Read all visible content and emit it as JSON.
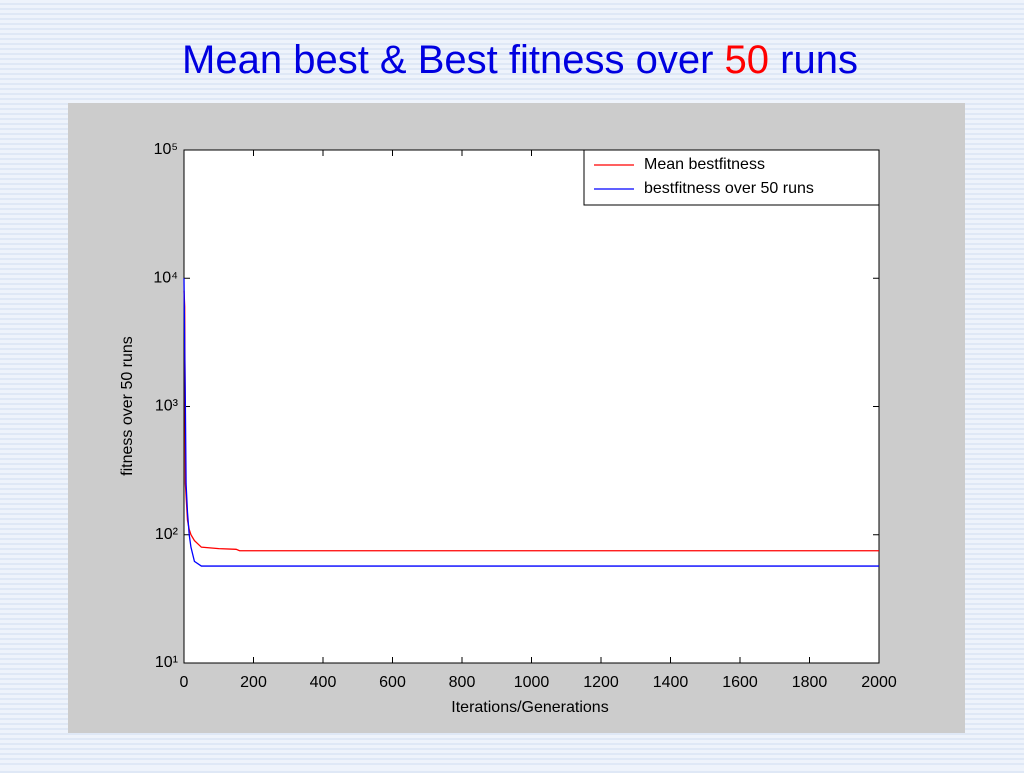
{
  "slide_title": [
    "Mean best & Best fitness over",
    "50",
    "runs"
  ],
  "chart_data": {
    "type": "line",
    "log_y": true,
    "x_label": "Iterations/Generations",
    "y_label": "fitness over 50 runs",
    "x": [
      0,
      2,
      4,
      6,
      10,
      15,
      20,
      30,
      50,
      100,
      150,
      160,
      2000
    ],
    "series": [
      {
        "name": "Mean bestfitness",
        "color": "#ff0000",
        "values": [
          8000,
          6000,
          250,
          200,
          130,
          110,
          100,
          90,
          80,
          78,
          77,
          75,
          75
        ]
      },
      {
        "name": "bestfitness over 50 runs",
        "color": "#0000ff",
        "values": [
          10000,
          3000,
          1000,
          250,
          150,
          100,
          80,
          62,
          57,
          57,
          57,
          57,
          57
        ]
      }
    ],
    "xlim": [
      0,
      2000
    ],
    "xticks": [
      0,
      200,
      400,
      600,
      800,
      1000,
      1200,
      1400,
      1600,
      1800,
      2000
    ],
    "ylim": [
      10,
      100000
    ],
    "yticks": [
      {
        "value": 10,
        "label": "10¹"
      },
      {
        "value": 100,
        "label": "10²"
      },
      {
        "value": 1000,
        "label": "10³"
      },
      {
        "value": 10000,
        "label": "10⁴"
      },
      {
        "value": 100000,
        "label": "10⁵"
      }
    ],
    "legend": "upper right"
  }
}
